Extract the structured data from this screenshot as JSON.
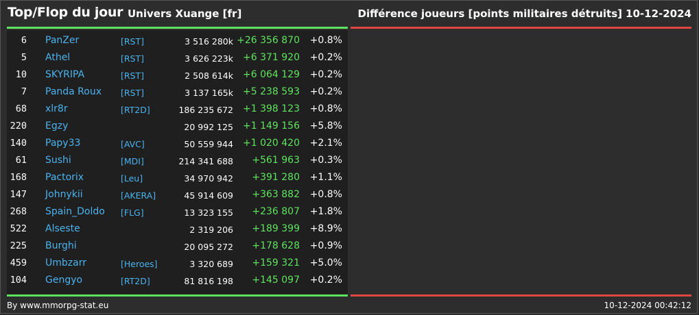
{
  "header": {
    "title": "Top/Flop du jour",
    "universe": "Univers Xuange [fr]",
    "metric": "Différence joueurs [points militaires détruits]",
    "date": "10-12-2024"
  },
  "colors": {
    "background": "#2d2d2d",
    "panel": "#1f1f1f",
    "name_link": "#4bb3f0",
    "positive": "#5fe45f",
    "flop_bar": "#e2473f"
  },
  "top": [
    {
      "rank": "6",
      "name": "PanZer",
      "alliance": "[RST]",
      "points": "3 516 280k",
      "diff": "+26 356 870",
      "pct": "+0.8%"
    },
    {
      "rank": "5",
      "name": "Athel",
      "alliance": "[RST]",
      "points": "3 626 223k",
      "diff": "+6 371 920",
      "pct": "+0.2%"
    },
    {
      "rank": "10",
      "name": "SKYRIPA",
      "alliance": "[RST]",
      "points": "2 508 614k",
      "diff": "+6 064 129",
      "pct": "+0.2%"
    },
    {
      "rank": "7",
      "name": "Panda Roux",
      "alliance": "[RST]",
      "points": "3 137 165k",
      "diff": "+5 238 593",
      "pct": "+0.2%"
    },
    {
      "rank": "68",
      "name": "xlr8r",
      "alliance": "[RT2D]",
      "points": "186 235 672",
      "diff": "+1 398 123",
      "pct": "+0.8%"
    },
    {
      "rank": "220",
      "name": "Egzy",
      "alliance": "",
      "points": "20 992 125",
      "diff": "+1 149 156",
      "pct": "+5.8%"
    },
    {
      "rank": "140",
      "name": "Papy33",
      "alliance": "[AVC]",
      "points": "50 559 944",
      "diff": "+1 020 420",
      "pct": "+2.1%"
    },
    {
      "rank": "61",
      "name": "Sushi",
      "alliance": "[MDI]",
      "points": "214 341 688",
      "diff": "+561 963",
      "pct": "+0.3%"
    },
    {
      "rank": "168",
      "name": "Pactorix",
      "alliance": "[Leu]",
      "points": "34 970 942",
      "diff": "+391 280",
      "pct": "+1.1%"
    },
    {
      "rank": "147",
      "name": "Johnykii",
      "alliance": "[AKERA]",
      "points": "45 914 609",
      "diff": "+363 882",
      "pct": "+0.8%"
    },
    {
      "rank": "268",
      "name": "Spain_Doldo",
      "alliance": "[FLG]",
      "points": "13 323 155",
      "diff": "+236 807",
      "pct": "+1.8%"
    },
    {
      "rank": "522",
      "name": "Alseste",
      "alliance": "",
      "points": "2 319 206",
      "diff": "+189 399",
      "pct": "+8.9%"
    },
    {
      "rank": "225",
      "name": "Burghi",
      "alliance": "",
      "points": "20 095 272",
      "diff": "+178 628",
      "pct": "+0.9%"
    },
    {
      "rank": "459",
      "name": "Umbzarr",
      "alliance": "[Heroes]",
      "points": "3 320 689",
      "diff": "+159 321",
      "pct": "+5.0%"
    },
    {
      "rank": "104",
      "name": "Gengyo",
      "alliance": "[RT2D]",
      "points": "81 816 198",
      "diff": "+145 097",
      "pct": "+0.2%"
    }
  ],
  "footer": {
    "credit": "By www.mmorpg-stat.eu",
    "timestamp": "10-12-2024 00:42:12"
  }
}
